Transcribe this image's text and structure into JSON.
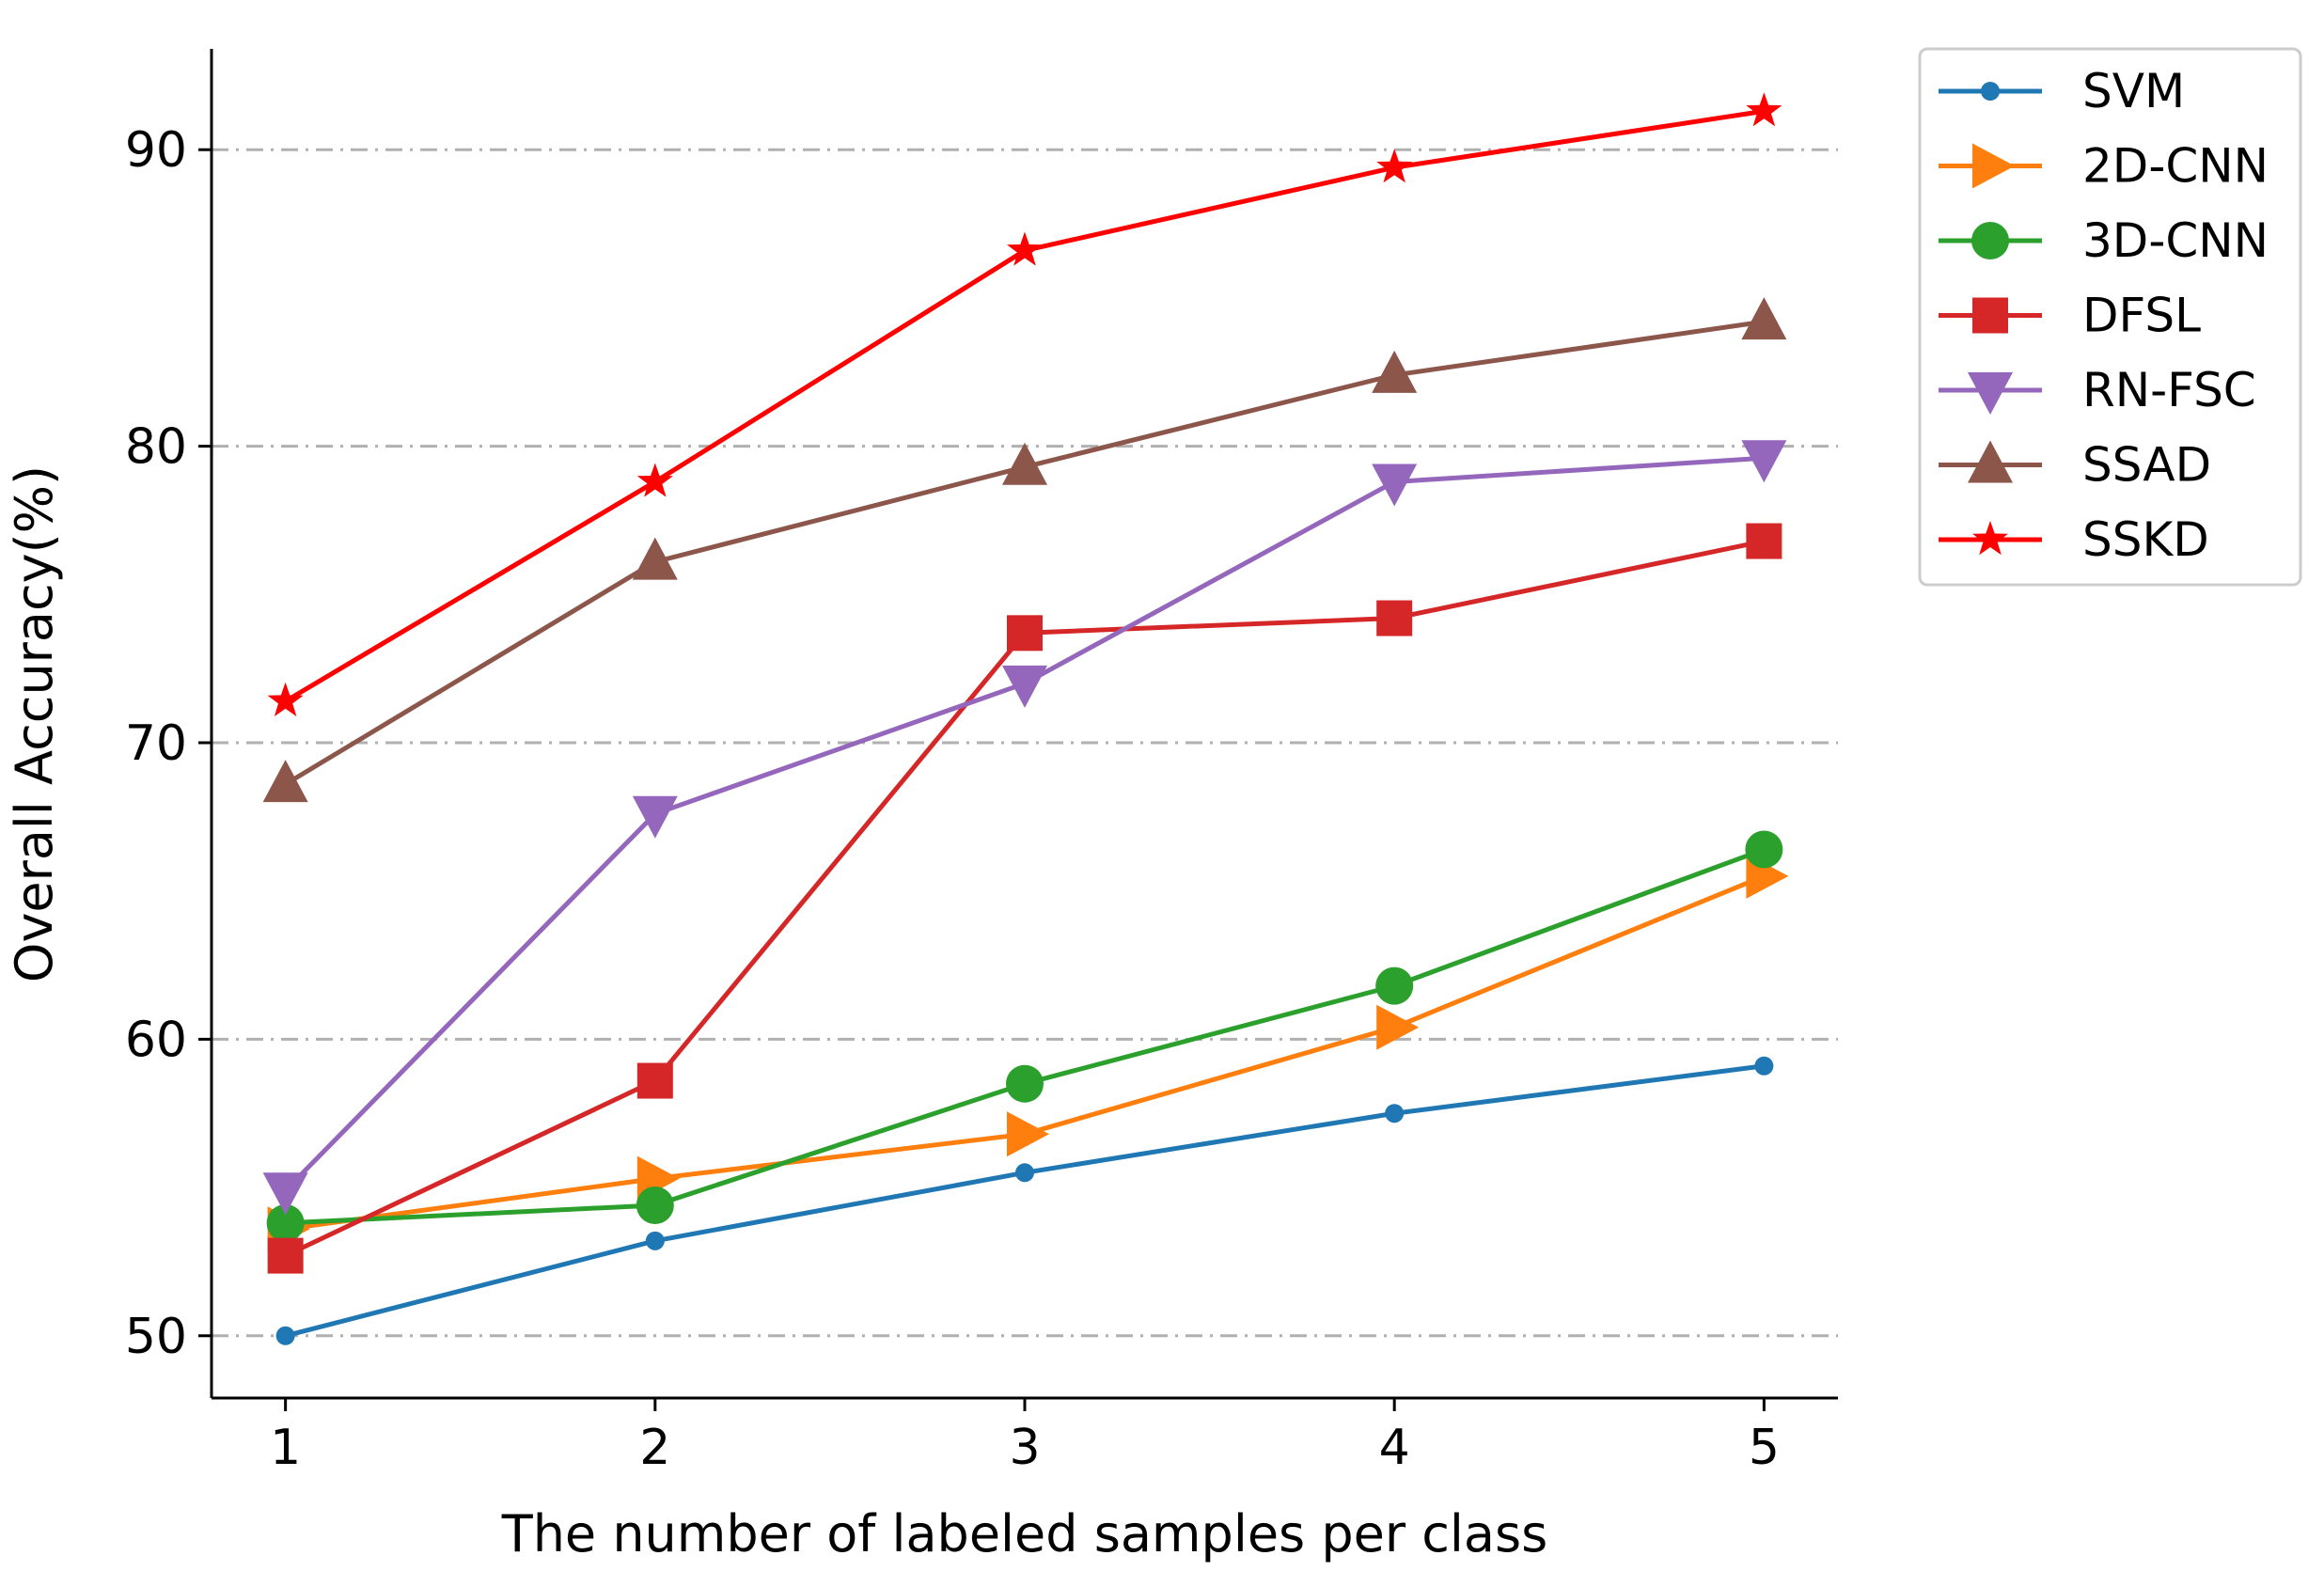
{
  "chart_data": {
    "type": "line",
    "title": "",
    "xlabel": "The number of labeled samples per class",
    "ylabel": "Overall Accuracy(%)",
    "x": [
      1,
      2,
      3,
      4,
      5
    ],
    "x_tick_labels": [
      "1",
      "2",
      "3",
      "4",
      "5"
    ],
    "y_ticks": [
      50,
      60,
      70,
      80,
      90
    ],
    "y_tick_labels": [
      "50",
      "60",
      "70",
      "80",
      "90"
    ],
    "xlim": [
      0.8,
      5.2
    ],
    "ylim": [
      47.9,
      93.4
    ],
    "grid": "horizontal dash-dot",
    "legend_position": "outside-top-right",
    "series": [
      {
        "name": "SVM",
        "marker": "circle-small",
        "color": "#1f77b4",
        "values": [
          50.0,
          53.2,
          55.5,
          57.5,
          59.1
        ]
      },
      {
        "name": "2D-CNN",
        "marker": "triangle-right",
        "color": "#ff7f0e",
        "values": [
          53.6,
          55.3,
          56.8,
          60.4,
          65.5
        ]
      },
      {
        "name": "3D-CNN",
        "marker": "circle",
        "color": "#2ca02c",
        "values": [
          53.8,
          54.4,
          58.5,
          61.8,
          66.4
        ]
      },
      {
        "name": "DFSL",
        "marker": "square",
        "color": "#d62728",
        "values": [
          52.7,
          58.6,
          73.7,
          74.2,
          76.8
        ]
      },
      {
        "name": "RN-FSC",
        "marker": "triangle-down",
        "color": "#9467bd",
        "values": [
          54.9,
          67.6,
          72.0,
          78.8,
          79.6
        ]
      },
      {
        "name": "SSAD",
        "marker": "triangle-up",
        "color": "#8c564b",
        "values": [
          68.6,
          76.1,
          79.3,
          82.4,
          84.2
        ]
      },
      {
        "name": "SSKD",
        "marker": "star",
        "color": "#ff0000",
        "values": [
          71.4,
          78.8,
          86.6,
          89.4,
          91.3
        ]
      }
    ]
  }
}
